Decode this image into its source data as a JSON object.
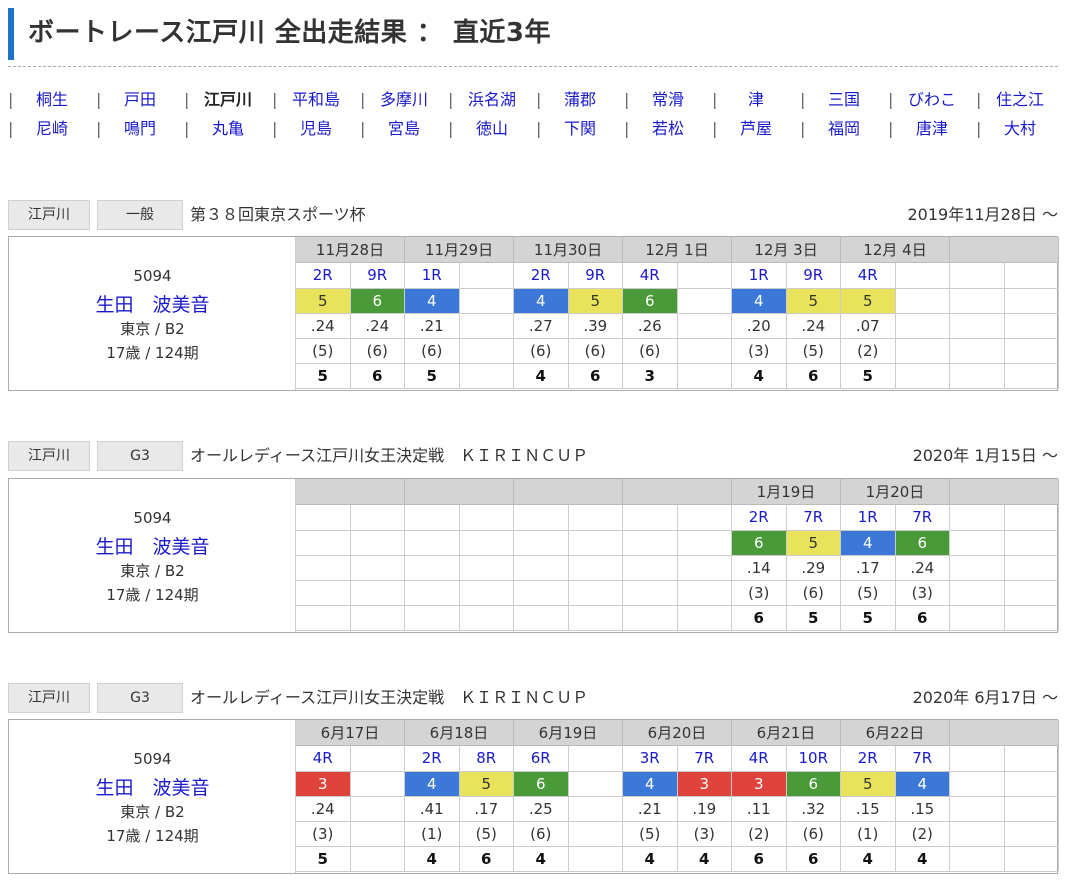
{
  "page_title": "ボートレース江戸川 全出走結果 ： 直近3年",
  "nav": {
    "row1": [
      {
        "label": "桐生",
        "current": false
      },
      {
        "label": "戸田",
        "current": false
      },
      {
        "label": "江戸川",
        "current": true
      },
      {
        "label": "平和島",
        "current": false
      },
      {
        "label": "多摩川",
        "current": false
      },
      {
        "label": "浜名湖",
        "current": false
      },
      {
        "label": "蒲郡",
        "current": false
      },
      {
        "label": "常滑",
        "current": false
      },
      {
        "label": "津",
        "current": false
      },
      {
        "label": "三国",
        "current": false
      },
      {
        "label": "びわこ",
        "current": false
      },
      {
        "label": "住之江",
        "current": false
      }
    ],
    "row2": [
      {
        "label": "尼崎",
        "current": false
      },
      {
        "label": "鳴門",
        "current": false
      },
      {
        "label": "丸亀",
        "current": false
      },
      {
        "label": "児島",
        "current": false
      },
      {
        "label": "宮島",
        "current": false
      },
      {
        "label": "徳山",
        "current": false
      },
      {
        "label": "下関",
        "current": false
      },
      {
        "label": "若松",
        "current": false
      },
      {
        "label": "芦屋",
        "current": false
      },
      {
        "label": "福岡",
        "current": false
      },
      {
        "label": "唐津",
        "current": false
      },
      {
        "label": "大村",
        "current": false
      }
    ]
  },
  "racer": {
    "regno": "5094",
    "name": "生田　波美音",
    "branch": "東京 / B2",
    "age": "17歳 / 124期"
  },
  "frame_colors": {
    "1": "#ffffff",
    "2": "#333333",
    "3": "#e0433c",
    "4": "#3b78d8",
    "5": "#e8e35a",
    "6": "#4a9a3a"
  },
  "sections": [
    {
      "venue": "江戸川",
      "grade": "一般",
      "title": "第３８回東京スポーツ杯",
      "start": "2019年11月28日 ～",
      "days": [
        {
          "date": "11月28日",
          "races": [
            {
              "r": "2R",
              "f": 5,
              "st": ".24",
              "rank": "(5)",
              "fin": "5"
            },
            {
              "r": "9R",
              "f": 6,
              "st": ".24",
              "rank": "(6)",
              "fin": "6"
            }
          ]
        },
        {
          "date": "11月29日",
          "races": [
            {
              "r": "1R",
              "f": 4,
              "st": ".21",
              "rank": "(6)",
              "fin": "5"
            }
          ]
        },
        {
          "date": "11月30日",
          "races": [
            {
              "r": "2R",
              "f": 4,
              "st": ".27",
              "rank": "(6)",
              "fin": "4"
            },
            {
              "r": "9R",
              "f": 5,
              "st": ".39",
              "rank": "(6)",
              "fin": "6"
            }
          ]
        },
        {
          "date": "12月 1日",
          "races": [
            {
              "r": "4R",
              "f": 6,
              "st": ".26",
              "rank": "(6)",
              "fin": "3"
            }
          ]
        },
        {
          "date": "12月 3日",
          "races": [
            {
              "r": "1R",
              "f": 4,
              "st": ".20",
              "rank": "(3)",
              "fin": "4"
            },
            {
              "r": "9R",
              "f": 5,
              "st": ".24",
              "rank": "(5)",
              "fin": "6"
            }
          ]
        },
        {
          "date": "12月 4日",
          "races": [
            {
              "r": "4R",
              "f": 5,
              "st": ".07",
              "rank": "(2)",
              "fin": "5"
            }
          ]
        },
        {
          "date": "",
          "races": []
        }
      ]
    },
    {
      "venue": "江戸川",
      "grade": "G3",
      "title": "オールレディース江戸川女王決定戦　ＫＩＲＩＮＣＵＰ",
      "start": "2020年  1月15日 ～",
      "days": [
        {
          "date": "",
          "races": []
        },
        {
          "date": "",
          "races": []
        },
        {
          "date": "",
          "races": []
        },
        {
          "date": "",
          "races": []
        },
        {
          "date": "1月19日",
          "races": [
            {
              "r": "2R",
              "f": 6,
              "st": ".14",
              "rank": "(3)",
              "fin": "6"
            },
            {
              "r": "7R",
              "f": 5,
              "st": ".29",
              "rank": "(6)",
              "fin": "5"
            }
          ]
        },
        {
          "date": "1月20日",
          "races": [
            {
              "r": "1R",
              "f": 4,
              "st": ".17",
              "rank": "(5)",
              "fin": "5"
            },
            {
              "r": "7R",
              "f": 6,
              "st": ".24",
              "rank": "(3)",
              "fin": "6"
            }
          ]
        },
        {
          "date": "",
          "races": []
        }
      ]
    },
    {
      "venue": "江戸川",
      "grade": "G3",
      "title": "オールレディース江戸川女王決定戦　ＫＩＲＩＮＣＵＰ",
      "start": "2020年  6月17日 ～",
      "days": [
        {
          "date": "6月17日",
          "races": [
            {
              "r": "4R",
              "f": 3,
              "st": ".24",
              "rank": "(3)",
              "fin": "5"
            }
          ]
        },
        {
          "date": "6月18日",
          "races": [
            {
              "r": "2R",
              "f": 4,
              "st": ".41",
              "rank": "(1)",
              "fin": "4"
            },
            {
              "r": "8R",
              "f": 5,
              "st": ".17",
              "rank": "(5)",
              "fin": "6"
            }
          ]
        },
        {
          "date": "6月19日",
          "races": [
            {
              "r": "6R",
              "f": 6,
              "st": ".25",
              "rank": "(6)",
              "fin": "4"
            }
          ]
        },
        {
          "date": "6月20日",
          "races": [
            {
              "r": "3R",
              "f": 4,
              "st": ".21",
              "rank": "(5)",
              "fin": "4"
            },
            {
              "r": "7R",
              "f": 3,
              "st": ".19",
              "rank": "(3)",
              "fin": "4"
            }
          ]
        },
        {
          "date": "6月21日",
          "races": [
            {
              "r": "4R",
              "f": 3,
              "st": ".11",
              "rank": "(2)",
              "fin": "6"
            },
            {
              "r": "10R",
              "f": 6,
              "st": ".32",
              "rank": "(6)",
              "fin": "6"
            }
          ]
        },
        {
          "date": "6月22日",
          "races": [
            {
              "r": "2R",
              "f": 5,
              "st": ".15",
              "rank": "(1)",
              "fin": "4"
            },
            {
              "r": "7R",
              "f": 4,
              "st": ".15",
              "rank": "(2)",
              "fin": "4"
            }
          ]
        },
        {
          "date": "",
          "races": []
        }
      ]
    }
  ]
}
